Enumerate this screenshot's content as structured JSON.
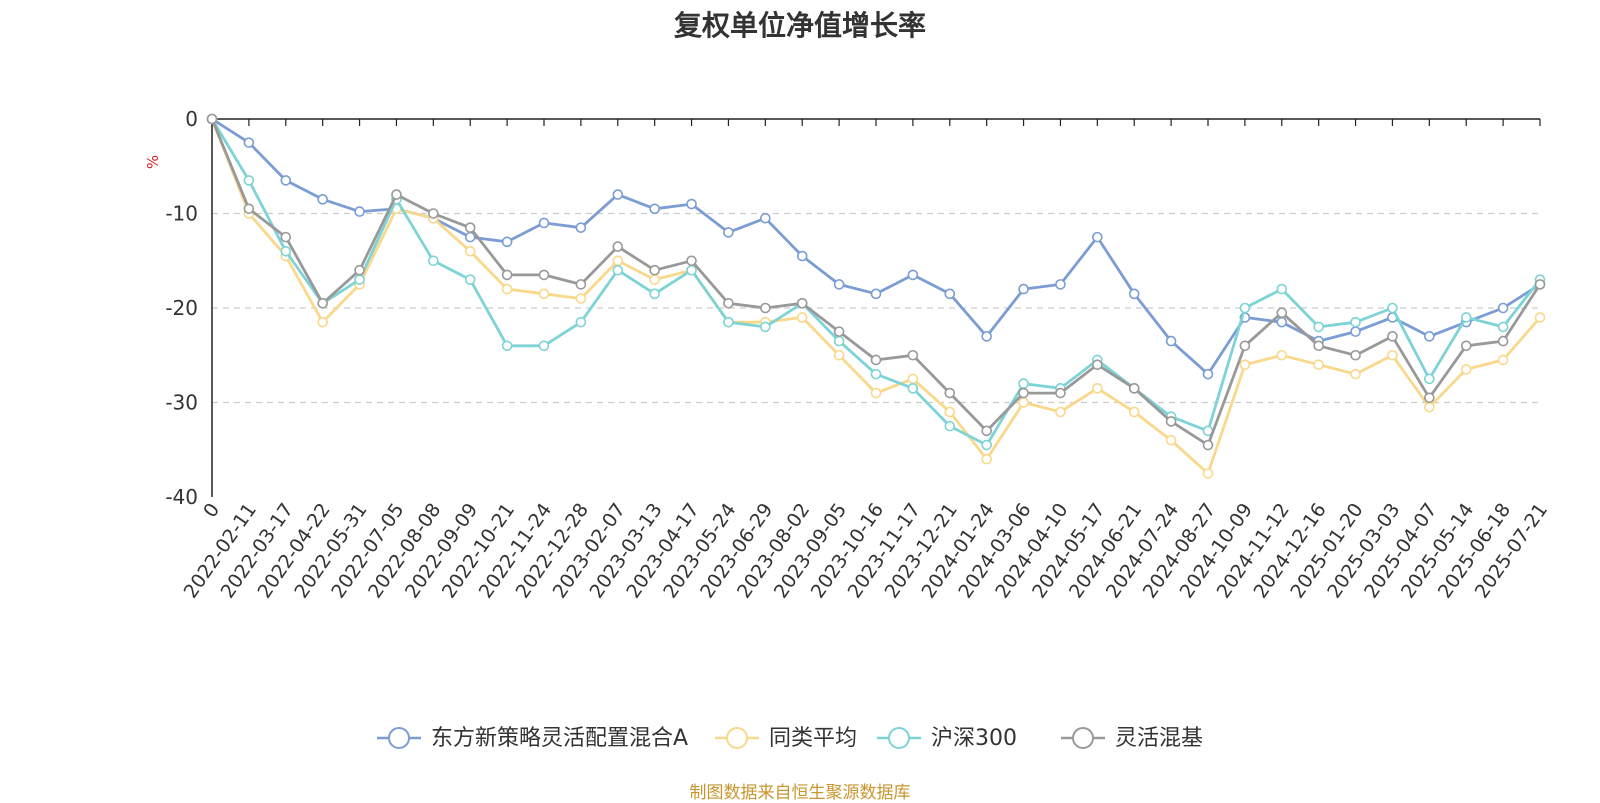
{
  "title": "复权单位净值增长率",
  "source_note": "制图数据来自恒生聚源数据库",
  "chart_data": {
    "type": "line",
    "title": "复权单位净值增长率",
    "ylabel": "%",
    "ylim": [
      -40,
      0
    ],
    "yticks": [
      0,
      -10,
      -20,
      -30,
      -40
    ],
    "grid": "horizontal dashed",
    "legend_position": "bottom-center",
    "categories": [
      "0",
      "2022-02-11",
      "2022-03-17",
      "2022-04-22",
      "2022-05-31",
      "2022-07-05",
      "2022-08-08",
      "2022-09-09",
      "2022-10-21",
      "2022-11-24",
      "2022-12-28",
      "2023-02-07",
      "2023-03-13",
      "2023-04-17",
      "2023-05-24",
      "2023-06-29",
      "2023-08-02",
      "2023-09-05",
      "2023-10-16",
      "2023-11-17",
      "2023-12-21",
      "2024-01-24",
      "2024-03-06",
      "2024-04-10",
      "2024-05-17",
      "2024-06-21",
      "2024-07-24",
      "2024-08-27",
      "2024-10-09",
      "2024-11-12",
      "2024-12-16",
      "2025-01-20",
      "2025-03-03",
      "2025-04-07",
      "2025-05-14",
      "2025-06-18",
      "2025-07-21"
    ],
    "series": [
      {
        "name": "东方新策略灵活配置混合A",
        "color": "#7b9dd4",
        "values": [
          0,
          -2.5,
          -6.5,
          -8.5,
          -9.8,
          -9.5,
          -10.5,
          -12.5,
          -13,
          -11,
          -11.5,
          -8,
          -9.5,
          -9,
          -12,
          -10.5,
          -14.5,
          -17.5,
          -18.5,
          -16.5,
          -18.5,
          -23,
          -18,
          -17.5,
          -12.5,
          -18.5,
          -23.5,
          -27,
          -21,
          -21.5,
          -23.5,
          -22.5,
          -21,
          -23,
          -21.5,
          -20,
          -17.5
        ]
      },
      {
        "name": "同类平均",
        "color": "#fad88b",
        "values": [
          0,
          -10,
          -14.5,
          -21.5,
          -17.5,
          -9.5,
          -10.5,
          -14,
          -18,
          -18.5,
          -19,
          -15,
          -17,
          -16,
          -21.5,
          -21.5,
          -21,
          -25,
          -29,
          -27.5,
          -31,
          -36,
          -30,
          -31,
          -28.5,
          -31,
          -34,
          -37.5,
          -26,
          -25,
          -26,
          -27,
          -25,
          -30.5,
          -26.5,
          -25.5,
          -21
        ]
      },
      {
        "name": "沪深300",
        "color": "#7dd3d6",
        "values": [
          0,
          -6.5,
          -14,
          -19.5,
          -17,
          -8.5,
          -15,
          -17,
          -24,
          -24,
          -21.5,
          -16,
          -18.5,
          -16,
          -21.5,
          -22,
          -19.5,
          -23.5,
          -27,
          -28.5,
          -32.5,
          -34.5,
          -28,
          -28.5,
          -25.5,
          -28.5,
          -31.5,
          -33,
          -20,
          -18,
          -22,
          -21.5,
          -20,
          -27.5,
          -21,
          -22,
          -17
        ]
      },
      {
        "name": "灵活混基",
        "color": "#999999",
        "values": [
          0,
          -9.5,
          -12.5,
          -19.5,
          -16,
          -8,
          -10,
          -11.5,
          -16.5,
          -16.5,
          -17.5,
          -13.5,
          -16,
          -15,
          -19.5,
          -20,
          -19.5,
          -22.5,
          -25.5,
          -25,
          -29,
          -33,
          -29,
          -29,
          -26,
          -28.5,
          -32,
          -34.5,
          -24,
          -20.5,
          -24,
          -25,
          -23,
          -29.5,
          -24,
          -23.5,
          -17.5
        ]
      }
    ]
  }
}
